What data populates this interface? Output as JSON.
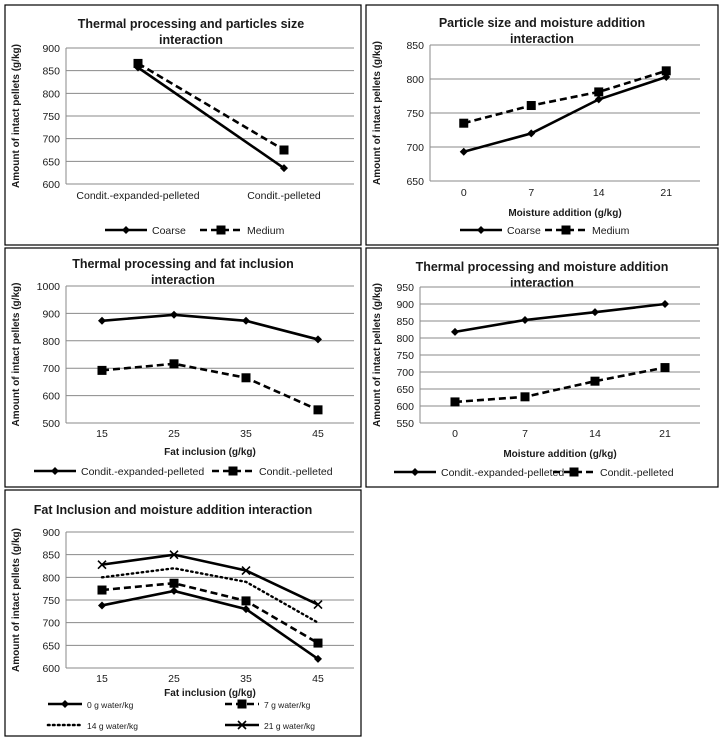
{
  "chart_data": [
    {
      "type": "line",
      "title": "Thermal processing and particles size interaction",
      "title_lines": [
        "Thermal processing and particles size",
        "interaction"
      ],
      "xlabel": "",
      "ylabel": "Amount of intact pellets (g/kg)",
      "ylim": [
        600,
        900
      ],
      "yticks": [
        600,
        650,
        700,
        750,
        800,
        850,
        900
      ],
      "categories": [
        "Condit.-expanded-pelleted",
        "Condit.-pelleted"
      ],
      "series": [
        {
          "name": "Coarse",
          "values": [
            857,
            635
          ]
        },
        {
          "name": "Medium",
          "values": [
            866,
            675
          ]
        }
      ]
    },
    {
      "type": "line",
      "title": "Particle size and moisture addition interaction",
      "title_lines": [
        "Particle size and moisture addition",
        "interaction"
      ],
      "xlabel": "Moisture addition (g/kg)",
      "ylabel": "Amount of intact pellets (g/kg)",
      "ylim": [
        650,
        850
      ],
      "yticks": [
        650,
        700,
        750,
        800,
        850
      ],
      "categories": [
        "0",
        "7",
        "14",
        "21"
      ],
      "series": [
        {
          "name": "Coarse",
          "values": [
            693,
            720,
            770,
            803
          ]
        },
        {
          "name": "Medium",
          "values": [
            735,
            761,
            781,
            812
          ]
        }
      ]
    },
    {
      "type": "line",
      "title": "Thermal processing and fat inclusion interaction",
      "title_lines": [
        "Thermal processing and fat inclusion",
        "interaction"
      ],
      "xlabel": "Fat inclusion (g/kg)",
      "ylabel": "Amount of intact pellets (g/kg)",
      "ylim": [
        500,
        1000
      ],
      "yticks": [
        500,
        600,
        700,
        800,
        900,
        1000
      ],
      "categories": [
        "15",
        "25",
        "35",
        "45"
      ],
      "series": [
        {
          "name": "Condit.-expanded-pelleted",
          "values": [
            873,
            895,
            873,
            805
          ]
        },
        {
          "name": "Condit.-pelleted",
          "values": [
            692,
            716,
            665,
            548
          ]
        }
      ]
    },
    {
      "type": "line",
      "title": "Thermal processing and moisture addition interaction",
      "title_lines": [
        "Thermal processing and moisture addition",
        "interaction"
      ],
      "xlabel": "Moisture addition (g/kg)",
      "ylabel": "Amount of intact pellets (g/kg)",
      "ylim": [
        550,
        950
      ],
      "yticks": [
        550,
        600,
        650,
        700,
        750,
        800,
        850,
        900,
        950
      ],
      "categories": [
        "0",
        "7",
        "14",
        "21"
      ],
      "series": [
        {
          "name": "Condit.-expanded-pelleted",
          "values": [
            818,
            853,
            876,
            900
          ]
        },
        {
          "name": "Condit.-pelleted",
          "values": [
            612,
            627,
            673,
            713
          ]
        }
      ]
    },
    {
      "type": "line",
      "title": "Fat Inclusion and moisture addition interaction",
      "title_lines": [
        "Fat Inclusion and moisture addition interaction"
      ],
      "xlabel": "Fat inclusion (g/kg)",
      "ylabel": "Amount of intact pellets (g/kg)",
      "ylim": [
        600,
        900
      ],
      "yticks": [
        600,
        650,
        700,
        750,
        800,
        850,
        900
      ],
      "categories": [
        "15",
        "25",
        "35",
        "45"
      ],
      "series": [
        {
          "name": "0 g water/kg",
          "values": [
            738,
            770,
            730,
            620
          ]
        },
        {
          "name": "7 g water/kg",
          "values": [
            772,
            787,
            748,
            655
          ]
        },
        {
          "name": "14 g water/kg",
          "values": [
            800,
            820,
            790,
            700
          ]
        },
        {
          "name": "21 g water/kg",
          "values": [
            828,
            850,
            815,
            740
          ]
        }
      ]
    }
  ]
}
